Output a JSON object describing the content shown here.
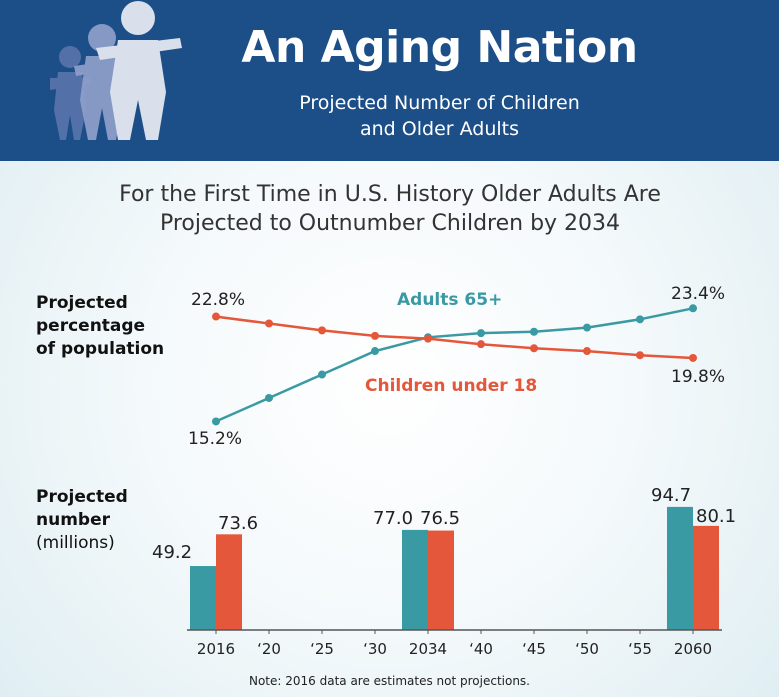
{
  "header": {
    "title": "An Aging Nation",
    "subtitle_line1": "Projected Number of Children",
    "subtitle_line2": "and Older Adults"
  },
  "headline": {
    "line1": "For the First Time in U.S. History Older Adults Are",
    "line2": "Projected to Outnumber Children by 2034"
  },
  "line_panel": {
    "ylabel_line1": "Projected",
    "ylabel_line2": "percentage",
    "ylabel_line3": "of population"
  },
  "bar_panel": {
    "ylabel_line1": "Projected",
    "ylabel_line2": "number",
    "ylabel_line3": "(millions)"
  },
  "note": "Note: 2016 data are estimates not projections.",
  "colors": {
    "header_bg": "#1c4f88",
    "adults": "#3a9aa3",
    "children": "#e4573a",
    "axis": "#555555"
  },
  "chart_data": [
    {
      "type": "line",
      "x": [
        2016,
        2020,
        2025,
        2030,
        2034,
        2040,
        2045,
        2050,
        2055,
        2060
      ],
      "x_tick_labels": [
        "2016",
        "‘20",
        "‘25",
        "‘30",
        "2034",
        "‘40",
        "‘45",
        "‘50",
        "‘55",
        "2060"
      ],
      "ylabel": "Projected percentage of population",
      "ylim": [
        14,
        24
      ],
      "series": [
        {
          "name": "Adults 65+",
          "color": "#3a9aa3",
          "values": [
            15.2,
            16.9,
            18.6,
            20.3,
            21.3,
            21.6,
            21.7,
            22.0,
            22.6,
            23.4
          ],
          "labels": {
            "first": "15.2%",
            "last": "23.4%"
          }
        },
        {
          "name": "Children under 18",
          "color": "#e4573a",
          "values": [
            22.8,
            22.3,
            21.8,
            21.4,
            21.2,
            20.8,
            20.5,
            20.3,
            20.0,
            19.8
          ],
          "labels": {
            "first": "22.8%",
            "last": "19.8%"
          }
        }
      ],
      "legend": "inline labels"
    },
    {
      "type": "bar",
      "categories": [
        "2016",
        "2034",
        "2060"
      ],
      "ylabel": "Projected number (millions)",
      "ylim": [
        0,
        100
      ],
      "series": [
        {
          "color": "#3a9aa3",
          "values": [
            49.2,
            77.0,
            94.7
          ],
          "labels": [
            "49.2",
            "77.0",
            "94.7"
          ]
        },
        {
          "color": "#e4573a",
          "values": [
            73.6,
            76.5,
            80.1
          ],
          "labels": [
            "73.6",
            "76.5",
            "80.1"
          ]
        }
      ]
    }
  ]
}
